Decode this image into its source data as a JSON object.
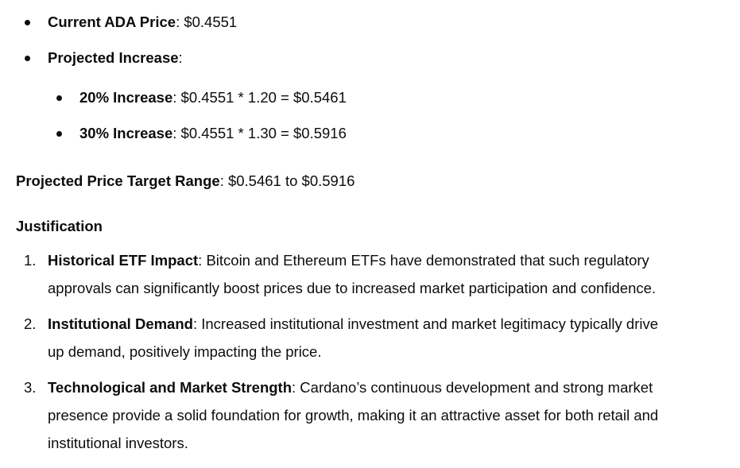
{
  "calc": {
    "current": {
      "label": "Current ADA Price",
      "sep": ": ",
      "value": "$0.4551"
    },
    "projected": {
      "label": "Projected Increase",
      "sep": ":"
    },
    "increases": [
      {
        "label": "20% Increase",
        "sep": ": ",
        "formula": "$0.4551 * 1.20 = $0.5461"
      },
      {
        "label": "30% Increase",
        "sep": ": ",
        "formula": "$0.4551 * 1.30 = $0.5916"
      }
    ]
  },
  "target": {
    "label": "Projected Price Target Range",
    "sep": ": ",
    "value": "$0.5461 to $0.5916"
  },
  "justification": {
    "heading": "Justification",
    "items": [
      {
        "num": "1.",
        "title": "Historical ETF Impact",
        "sep": ": ",
        "line1": "Bitcoin and Ethereum ETFs have demonstrated that such regulatory",
        "line2": "approvals can significantly boost prices due to increased market participation and confidence."
      },
      {
        "num": "2.",
        "title": "Institutional Demand",
        "sep": ": ",
        "line1": "Increased institutional investment and market legitimacy typically drive",
        "line2": "up demand, positively impacting the price."
      },
      {
        "num": "3.",
        "title": "Technological and Market Strength",
        "sep": ": ",
        "line1": "Cardano’s continuous development and strong market",
        "line2": "presence provide a solid foundation for growth, making it an attractive asset for both retail and",
        "line3": "institutional investors."
      }
    ]
  }
}
